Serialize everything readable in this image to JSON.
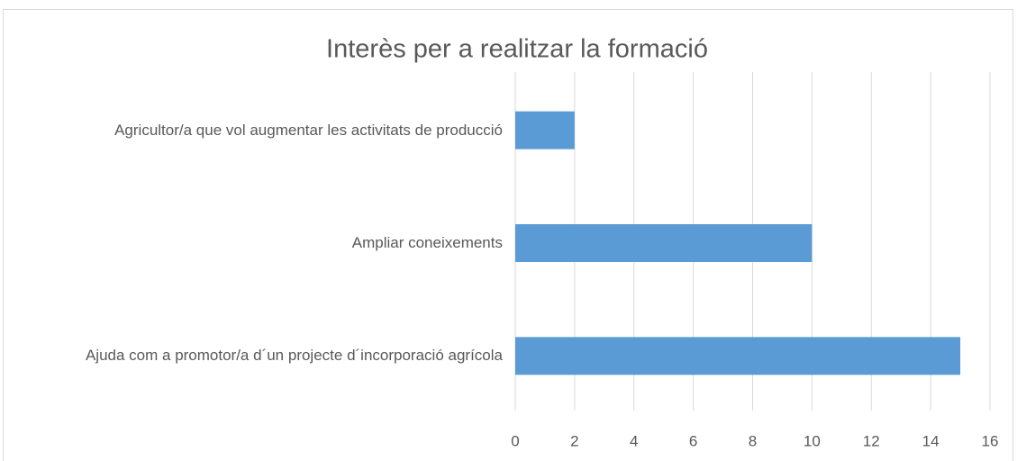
{
  "chart_data": {
    "type": "bar",
    "orientation": "horizontal",
    "title": "Interès per a realitzar la formació",
    "categories": [
      "Agricultor/a que vol augmentar les activitats de producció",
      "Ampliar coneixements",
      "Ajuda com a promotor/a d´un projecte d´incorporació agrícola"
    ],
    "values": [
      2,
      10,
      15
    ],
    "color": "#5b9bd5",
    "xlim": [
      0,
      16
    ],
    "xticks": [
      0,
      2,
      4,
      6,
      8,
      10,
      12,
      14,
      16
    ],
    "grid": true
  }
}
